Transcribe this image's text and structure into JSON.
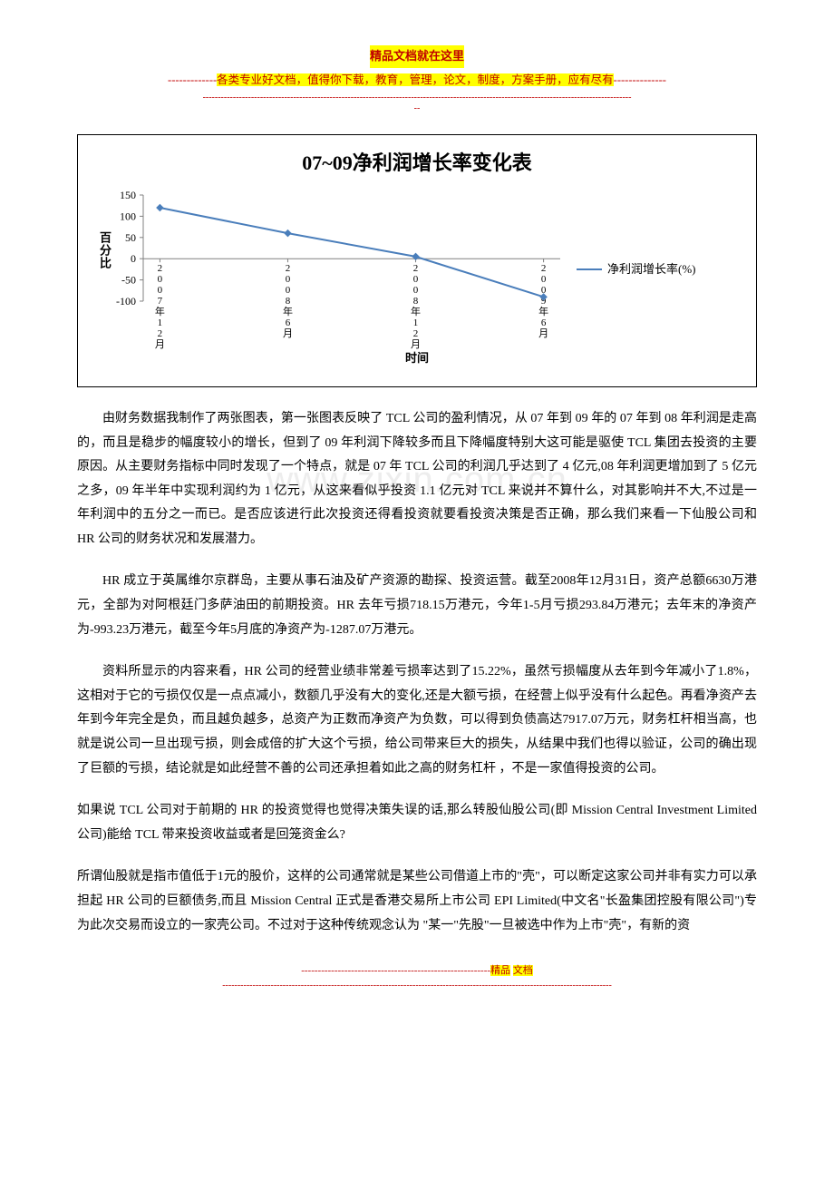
{
  "header": {
    "line1": "精品文档就在这里",
    "line2_dashes": "-------------",
    "line2_body": "各类专业好文档，值得你下载，教育，管理，论文，制度，方案手册，应有尽有",
    "line2_dashes_end": "--------------",
    "sep": "----------------------------------------------------------------------------------------------------------------------------------------------",
    "sep2": "--"
  },
  "chart": {
    "type": "line",
    "title": "07~09净利润增长率变化表",
    "ylabel": "百分比",
    "xlabel": "时间",
    "legend_label": "净利润增长率(%)",
    "categories": [
      "2007年12月",
      "2008年6月",
      "2008年12月",
      "2009年6月"
    ],
    "values": [
      120,
      60,
      5,
      -90
    ],
    "line_color": "#4a7ebb",
    "marker_color": "#4a7ebb",
    "axis_color": "#808080",
    "ytick_values": [
      -100,
      -50,
      0,
      50,
      100,
      150
    ],
    "ytick_labels": [
      "-100",
      "-50",
      "0",
      "50",
      "100",
      "150"
    ],
    "ylim": [
      -100,
      150
    ],
    "background_color": "#ffffff",
    "title_fontsize": 22,
    "label_fontsize": 13,
    "line_width": 2,
    "marker_size": 3
  },
  "watermark": "www.zixin.com.cn",
  "paragraphs": {
    "p1": "由财务数据我制作了两张图表，第一张图表反映了 TCL 公司的盈利情况，从 07 年到 09 年的 07 年到 08 年利润是走高的，而且是稳步的幅度较小的增长，但到了 09 年利润下降较多而且下降幅度特别大这可能是驱使 TCL 集团去投资的主要原因。从主要财务指标中同时发现了一个特点，就是 07 年 TCL 公司的利润几乎达到了 4 亿元,08 年利润更增加到了 5 亿元之多，09 年半年中实现利润约为 1 亿元，从这来看似乎投资 1.1 亿元对 TCL 来说并不算什么，对其影响并不大,不过是一年利润中的五分之一而已。是否应该进行此次投资还得看投资就要看投资决策是否正确，那么我们来看一下仙股公司和 HR 公司的财务状况和发展潜力。",
    "p2": "HR 成立于英属维尔京群岛，主要从事石油及矿产资源的勘探、投资运营。截至2008年12月31日，资产总额6630万港元，全部为对阿根廷门多萨油田的前期投资。HR 去年亏损718.15万港元，今年1-5月亏损293.84万港元；去年末的净资产为-993.23万港元，截至今年5月底的净资产为-1287.07万港元。",
    "p3": "资料所显示的内容来看，HR 公司的经营业绩非常差亏损率达到了15.22%，虽然亏损幅度从去年到今年减小了1.8%，这相对于它的亏损仅仅是一点点减小，数额几乎没有大的变化,还是大额亏损，在经营上似乎没有什么起色。再看净资产去年到今年完全是负，而且越负越多，总资产为正数而净资产为负数，可以得到负债高达7917.07万元，财务杠杆相当高，也就是说公司一旦出现亏损，则会成倍的扩大这个亏损，给公司带来巨大的损失，从结果中我们也得以验证，公司的确出现了巨额的亏损，结论就是如此经营不善的公司还承担着如此之高的财务杠杆 ，不是一家值得投资的公司。",
    "p4": "如果说 TCL 公司对于前期的 HR 的投资觉得也觉得决策失误的话,那么转股仙股公司(即 Mission Central Investment Limited 公司)能给 TCL 带来投资收益或者是回笼资金么?",
    "p5": "所谓仙股就是指市值低于1元的股价，这样的公司通常就是某些公司借道上市的\"壳\"，可以断定这家公司并非有实力可以承担起 HR 公司的巨额债务,而且 Mission Central 正式是香港交易所上市公司 EPI Limited(中文名\"长盈集团控股有限公司\")专为此次交易而设立的一家壳公司。不过对于这种传统观念认为 \"某一\"先股\"一旦被选中作为上市\"壳\"，有新的资"
  },
  "footer": {
    "dashes": "---------------------------------------------------------",
    "label": "精品",
    "gap": "   ",
    "label2": "文档",
    "sep": "---------------------------------------------------------------------------------------------------------------------------------"
  }
}
